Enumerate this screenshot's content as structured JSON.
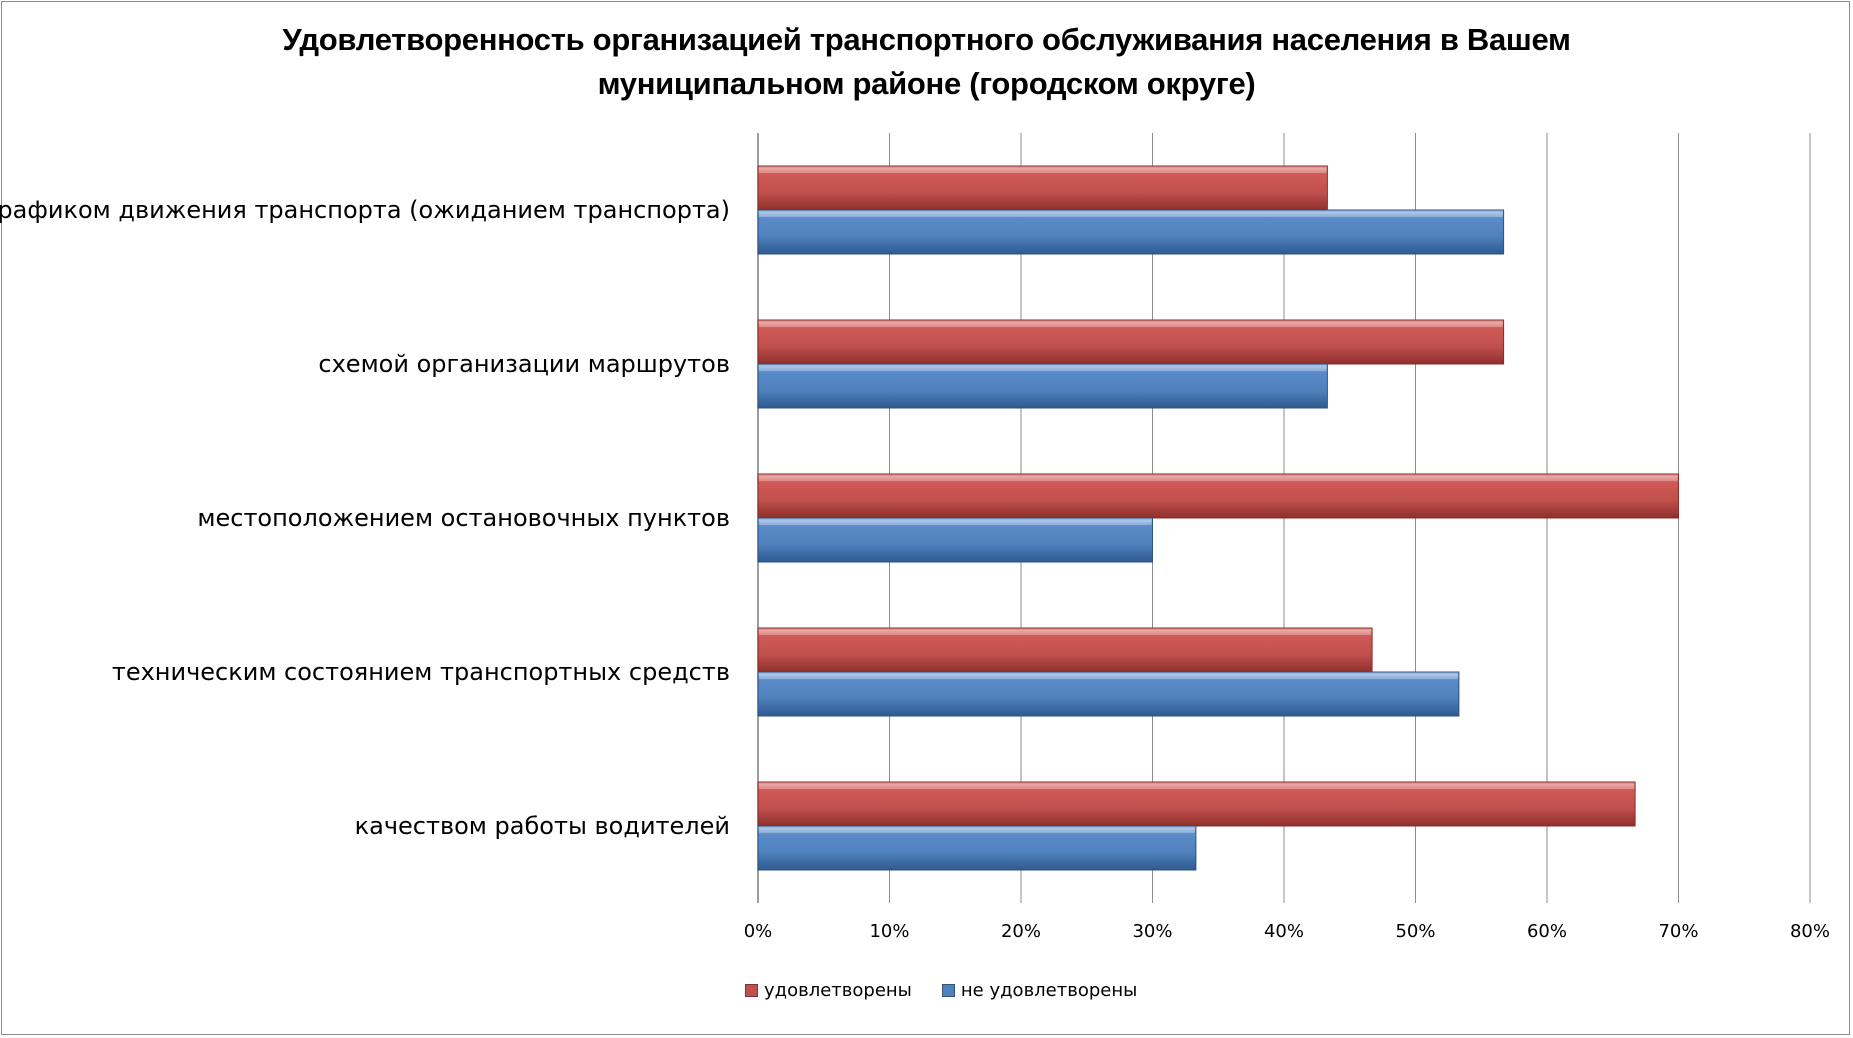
{
  "chart_data": {
    "type": "bar",
    "orientation": "horizontal",
    "title": "Удовлетворенность организацией транспортного обслуживания населения в Вашем муниципальном районе (городском округе)",
    "title_lines": [
      "Удовлетворенность организацией транспортного обслуживания населения в Вашем",
      "муниципальном районе (городском округе)"
    ],
    "categories": [
      "графиком движения транспорта (ожиданием транспорта)",
      "схемой организации маршрутов",
      "местоположением остановочных пунктов",
      "техническим состоянием транспортных средств",
      "качеством работы водителей"
    ],
    "series": [
      {
        "name": "удовлетворены",
        "color": "#c0504d",
        "values": [
          43.3,
          56.7,
          70.0,
          46.7,
          66.7
        ]
      },
      {
        "name": "не удовлетворены",
        "color": "#4f81bd",
        "values": [
          56.7,
          43.3,
          30.0,
          53.3,
          33.3
        ]
      }
    ],
    "xlim": [
      0,
      80
    ],
    "xticks": [
      "0%",
      "10%",
      "20%",
      "30%",
      "40%",
      "50%",
      "60%",
      "70%",
      "80%"
    ],
    "grid": true,
    "legend_position": "bottom"
  }
}
